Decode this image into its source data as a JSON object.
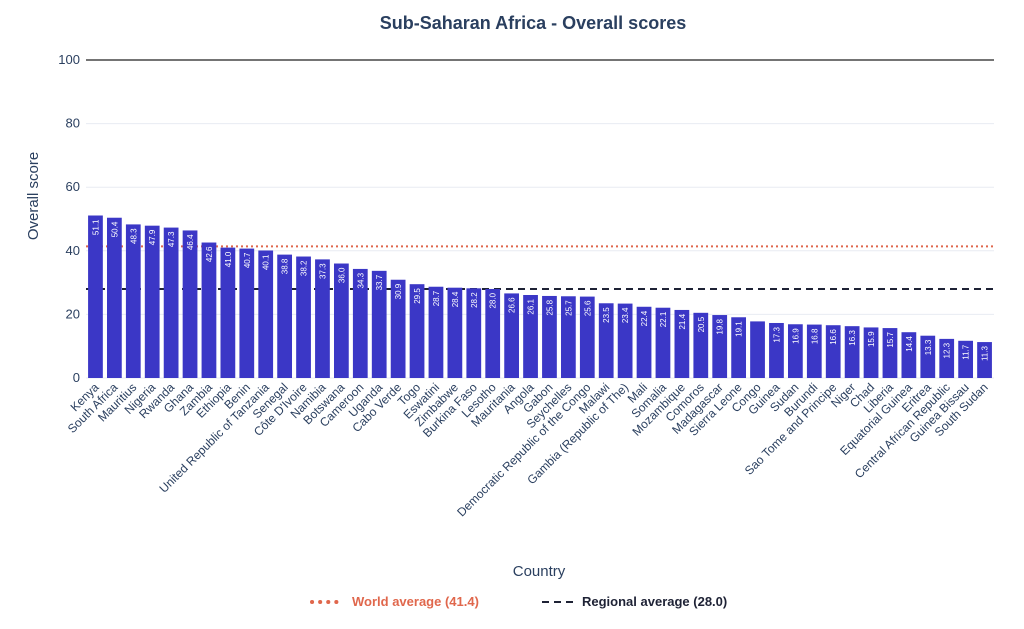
{
  "chart_data": {
    "type": "bar",
    "title": "Sub-Saharan Africa - Overall scores",
    "xlabel": "Country",
    "ylabel": "Overall score",
    "ylim": [
      0,
      100
    ],
    "yticks": [
      0,
      20,
      40,
      60,
      80,
      100
    ],
    "grid": true,
    "bar_color": "#3b37c6",
    "categories": [
      "Kenya",
      "South Africa",
      "Mauritius",
      "Nigeria",
      "Rwanda",
      "Ghana",
      "Zambia",
      "Ethiopia",
      "Benin",
      "United Republic of Tanzania",
      "Senegal",
      "Côte D'Ivoire",
      "Namibia",
      "Botswana",
      "Cameroon",
      "Uganda",
      "Cabo Verde",
      "Togo",
      "Eswatini",
      "Zimbabwe",
      "Burkina Faso",
      "Lesotho",
      "Mauritania",
      "Angola",
      "Gabon",
      "Seychelles",
      "Democratic Republic of the Congo",
      "Malawi",
      "Gambia (Republic of The)",
      "Mali",
      "Somalia",
      "Mozambique",
      "Comoros",
      "Madagascar",
      "Sierra Leone",
      "Congo",
      "Guinea",
      "Sudan",
      "Burundi",
      "Sao Tome and Principe",
      "Niger",
      "Chad",
      "Liberia",
      "Equatorial Guinea",
      "Eritrea",
      "Central African Republic",
      "Guinea Bissau",
      "South Sudan"
    ],
    "values": [
      51.1,
      50.4,
      48.3,
      47.9,
      47.3,
      46.4,
      42.6,
      41.0,
      40.7,
      40.1,
      38.8,
      38.2,
      37.3,
      36.0,
      34.3,
      33.7,
      30.9,
      29.5,
      28.7,
      28.4,
      28.2,
      28.0,
      26.6,
      26.1,
      25.8,
      25.7,
      25.6,
      23.5,
      23.4,
      22.4,
      22.1,
      21.4,
      20.5,
      19.8,
      19.1,
      17.8,
      17.3,
      16.9,
      16.8,
      16.6,
      16.3,
      15.9,
      15.7,
      14.4,
      13.3,
      12.3,
      11.7,
      11.3
    ],
    "data_labels": [
      "51.1",
      "50.4",
      "48.3",
      "47.9",
      "47.3",
      "46.4",
      "42.6",
      "41.0",
      "40.7",
      "40.1",
      "38.8",
      "38.2",
      "37.3",
      "36.0",
      "34.3",
      "33.7",
      "30.9",
      "29.5",
      "28.7",
      "28.4",
      "28.2",
      "28.0",
      "26.6",
      "26.1",
      "25.8",
      "25.7",
      "25.6",
      "23.5",
      "23.4",
      "22.4",
      "22.1",
      "21.4",
      "20.5",
      "19.8",
      "19.1",
      "",
      "17.3",
      "16.9",
      "16.8",
      "16.6",
      "16.3",
      "15.9",
      "15.7",
      "14.4",
      "13.3",
      "12.3",
      "11.7",
      "11.3"
    ],
    "reference_lines": [
      {
        "name": "World average (41.4)",
        "value": 41.4,
        "color": "#e0674c",
        "style": "dotted"
      },
      {
        "name": "Regional average (28.0)",
        "value": 28.0,
        "color": "#1e2235",
        "style": "dashed"
      }
    ],
    "legend_placement": "bottom-center"
  }
}
